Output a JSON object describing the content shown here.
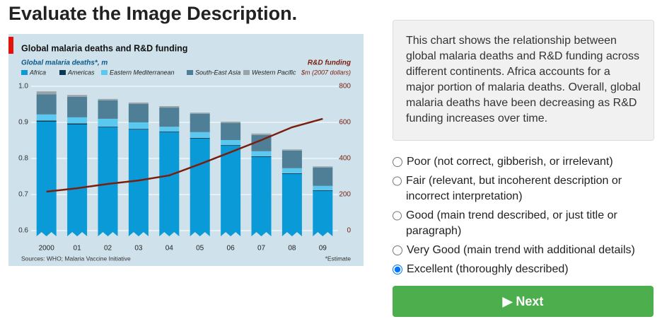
{
  "page": {
    "title": "Evaluate the Image Description.",
    "description": "This chart shows the relationship between global malaria deaths and R&D funding across different continents. Africa accounts for a major portion of malaria deaths. Overall, global malaria deaths have been decreasing as R&D funding increases over time.",
    "options": [
      "Poor (not correct, gibberish, or irrelevant)",
      "Fair (relevant, but incoherent description or incorrect interpretation)",
      "Good (main trend described, or just title or paragraph)",
      "Very Good (main trend with additional details)",
      "Excellent (thoroughly described)"
    ],
    "selected": 4,
    "button": "Next"
  },
  "chart_data": {
    "type": "bar",
    "stacked": true,
    "title": "Global malaria deaths and R&D funding",
    "ylabel": "Global malaria deaths*, m",
    "y2label": "R&D funding",
    "y2unit": "$m (2007 dollars)",
    "source": "Sources: WHO; Malaria Vaccine Initiative",
    "note": "*Estimate",
    "categories": [
      "2000",
      "01",
      "02",
      "03",
      "04",
      "05",
      "06",
      "07",
      "08",
      "09"
    ],
    "series": [
      {
        "name": "Africa",
        "color": "#0a9ad7",
        "values": [
          0.902,
          0.894,
          0.886,
          0.88,
          0.873,
          0.855,
          0.835,
          0.804,
          0.757,
          0.71
        ]
      },
      {
        "name": "Americas",
        "color": "#0b3a52",
        "values": [
          0.003,
          0.003,
          0.002,
          0.002,
          0.002,
          0.002,
          0.002,
          0.002,
          0.002,
          0.002
        ]
      },
      {
        "name": "Eastern Mediterranean",
        "color": "#5bc8f0",
        "values": [
          0.017,
          0.017,
          0.022,
          0.018,
          0.013,
          0.016,
          0.014,
          0.014,
          0.014,
          0.012
        ]
      },
      {
        "name": "South-East Asia",
        "color": "#4f7f96",
        "values": [
          0.056,
          0.057,
          0.051,
          0.051,
          0.053,
          0.051,
          0.047,
          0.045,
          0.049,
          0.051
        ]
      },
      {
        "name": "Western Pacific",
        "color": "#9aa4a8",
        "values": [
          0.008,
          0.005,
          0.004,
          0.004,
          0.004,
          0.003,
          0.004,
          0.004,
          0.003,
          0.003
        ]
      },
      {
        "type": "line",
        "axis": "y2",
        "color": "#7a1e10",
        "values": [
          216,
          235,
          259,
          278,
          306,
          369,
          435,
          502,
          573,
          620
        ]
      }
    ],
    "ylim": [
      0.6,
      1.0
    ],
    "yticks": [
      0.6,
      0.7,
      0.8,
      0.9,
      {
        "value": 1,
        "label": "1.0"
      }
    ],
    "y2lim": [
      0,
      800
    ],
    "y2ticks": [
      0,
      200,
      400,
      600,
      800
    ],
    "grid": true
  }
}
